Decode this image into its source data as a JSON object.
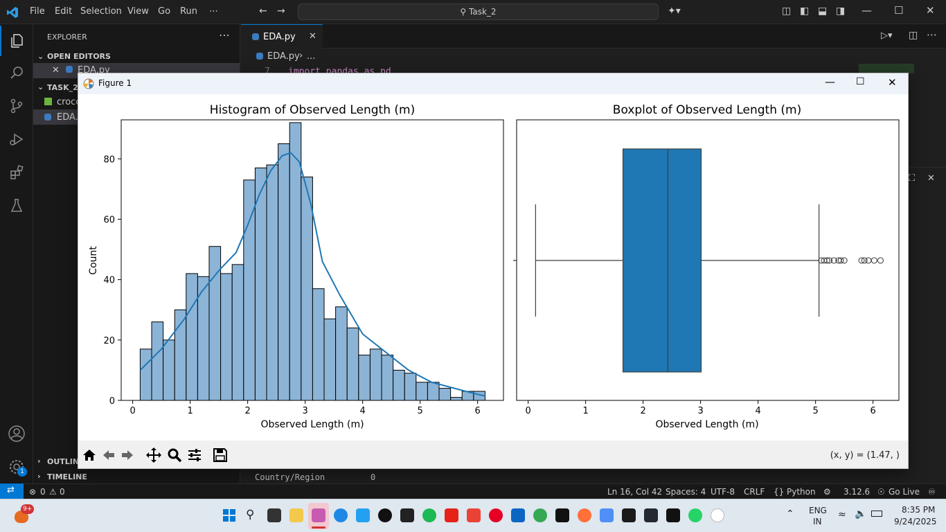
{
  "menu": [
    "File",
    "Edit",
    "Selection",
    "View",
    "Go",
    "Run",
    "⋯"
  ],
  "search": "Task_2",
  "sidebar": {
    "explorer_label": "EXPLORER",
    "open_editors_label": "OPEN EDITORS",
    "open_editor_file": "EDA.py",
    "task_label": "TASK_2",
    "files": [
      "crocc",
      "EDA.p"
    ],
    "outline_label": "OUTLINE",
    "timeline_label": "TIMELINE"
  },
  "editor": {
    "tab_label": "EDA.py",
    "breadcrumb_file": "EDA.py",
    "breadcrumb_more": "...",
    "line_number": "7",
    "code_line": "import pandas as pd",
    "terminal_text": "Country/Region",
    "terminal_value": "0"
  },
  "figure": {
    "window_title": "Figure 1",
    "coords": "(x, y) = (1.47, )"
  },
  "chart_data": [
    {
      "type": "bar",
      "title": "Histogram of Observed Length (m)",
      "xlabel": "Observed Length (m)",
      "ylabel": "Count",
      "xlim": [
        -0.2,
        6.45
      ],
      "ylim": [
        0,
        92
      ],
      "xticks": [
        0,
        1,
        2,
        3,
        4,
        5,
        6
      ],
      "yticks": [
        0,
        20,
        40,
        60,
        80
      ],
      "bin_edges": [
        0.13,
        0.33,
        0.53,
        0.73,
        0.93,
        1.13,
        1.33,
        1.53,
        1.73,
        1.93,
        2.13,
        2.33,
        2.53,
        2.73,
        2.93,
        3.13,
        3.33,
        3.53,
        3.73,
        3.93,
        4.13,
        4.33,
        4.53,
        4.73,
        4.93,
        5.13,
        5.33,
        5.53,
        5.73,
        5.93,
        6.13
      ],
      "values": [
        17,
        26,
        20,
        30,
        42,
        41,
        51,
        42,
        45,
        73,
        77,
        78,
        85,
        92,
        74,
        37,
        27,
        31,
        24,
        15,
        17,
        15,
        10,
        9,
        6,
        6,
        4,
        1,
        3,
        3
      ],
      "kde": {
        "x": [
          0.13,
          0.5,
          0.9,
          1.2,
          1.5,
          1.8,
          2.0,
          2.2,
          2.4,
          2.6,
          2.75,
          2.9,
          3.1,
          3.3,
          3.6,
          4.0,
          4.4,
          4.8,
          5.2,
          5.6,
          6.0,
          6.13
        ],
        "y": [
          10,
          17,
          27,
          36,
          43,
          49,
          58,
          68,
          76,
          81,
          82,
          79,
          65,
          46,
          35,
          22,
          16,
          10,
          6,
          4,
          2,
          1.5
        ]
      },
      "color": "#1f77b4",
      "bar_fill": "#8cb4d7"
    },
    {
      "type": "box",
      "title": "Boxplot of Observed Length (m)",
      "xlabel": "Observed Length (m)",
      "xlim": [
        -0.2,
        6.45
      ],
      "xticks": [
        0,
        1,
        2,
        3,
        4,
        5,
        6
      ],
      "whisker_low": 0.13,
      "q1": 1.65,
      "median": 2.43,
      "q3": 3.01,
      "whisker_high": 5.06,
      "outliers": [
        5.1,
        5.15,
        5.2,
        5.24,
        5.32,
        5.4,
        5.44,
        5.5,
        5.8,
        5.85,
        5.92,
        6.02,
        6.13
      ],
      "color": "#1f77b4"
    }
  ],
  "status": {
    "errors": "0",
    "warnings": "0",
    "position": "Ln 16, Col 42",
    "spaces": "Spaces: 4",
    "encoding": "UTF-8",
    "eol": "CRLF",
    "language": "Python",
    "version": "3.12.6",
    "golive": "Go Live"
  },
  "taskbar": {
    "badge": "9+",
    "lang": "ENG",
    "region": "IN",
    "time": "8:35 PM",
    "date": "9/24/2025"
  },
  "accounts_badge": "1"
}
